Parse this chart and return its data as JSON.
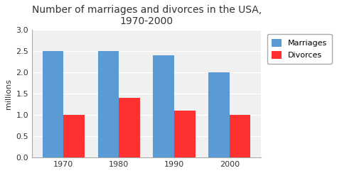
{
  "title": "Number of marriages and divorces in the USA,\n1970-2000",
  "categories": [
    "1970",
    "1980",
    "1990",
    "2000"
  ],
  "marriages": [
    2.5,
    2.5,
    2.4,
    2.0
  ],
  "divorces": [
    1.0,
    1.4,
    1.1,
    1.0
  ],
  "marriage_color": "#5B9BD5",
  "divorce_color": "#FF3030",
  "ylabel": "millions",
  "ylim": [
    0,
    3
  ],
  "yticks": [
    0,
    0.5,
    1.0,
    1.5,
    2.0,
    2.5,
    3.0
  ],
  "legend_labels": [
    "Marriages",
    "Divorces"
  ],
  "bar_width": 0.38,
  "background_color": "#FFFFFF",
  "plot_bg_color": "#F0F0F0",
  "title_fontsize": 10,
  "grid_color": "#FFFFFF",
  "tick_fontsize": 8
}
